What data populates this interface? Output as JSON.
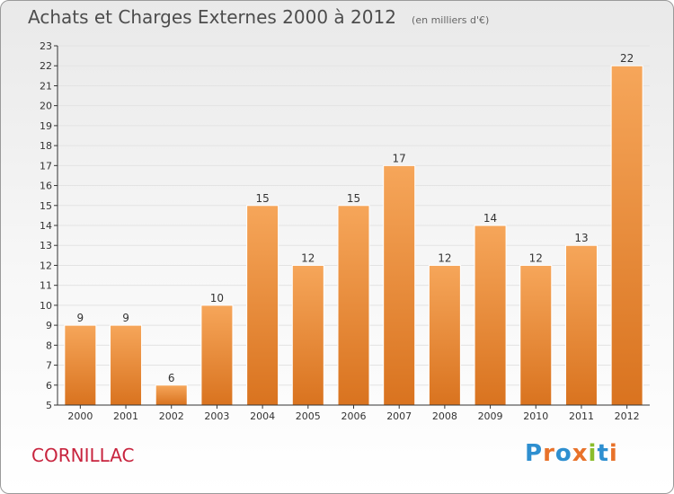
{
  "header": {
    "title": "Achats et Charges Externes 2000 à 2012",
    "unit": "(en milliers d'€)"
  },
  "footer": {
    "commune": "CORNILLAC",
    "brand": "Proxiti",
    "brand_colors": [
      "#2e8fd0",
      "#e8722a",
      "#2e8fd0",
      "#e8722a",
      "#8bbd2b",
      "#2e8fd0",
      "#e8722a"
    ]
  },
  "colors": {
    "bar_top": "#f6a65a",
    "bar_bottom": "#d9731f",
    "axis": "#333333",
    "grid": "#e3e3e3",
    "label": "#333333"
  },
  "chart_data": {
    "type": "bar",
    "title": "Achats et Charges Externes 2000 à 2012",
    "xlabel": "",
    "ylabel": "",
    "ylim": [
      5,
      23
    ],
    "yticks": [
      5,
      6,
      7,
      8,
      9,
      10,
      11,
      12,
      13,
      14,
      15,
      16,
      17,
      18,
      19,
      20,
      21,
      22,
      23
    ],
    "categories": [
      "2000",
      "2001",
      "2002",
      "2003",
      "2004",
      "2005",
      "2006",
      "2007",
      "2008",
      "2009",
      "2010",
      "2011",
      "2012"
    ],
    "values": [
      9,
      9,
      6,
      10,
      15,
      12,
      15,
      17,
      12,
      14,
      12,
      13,
      22
    ],
    "data_labels": true,
    "grid": true,
    "legend": "none"
  }
}
